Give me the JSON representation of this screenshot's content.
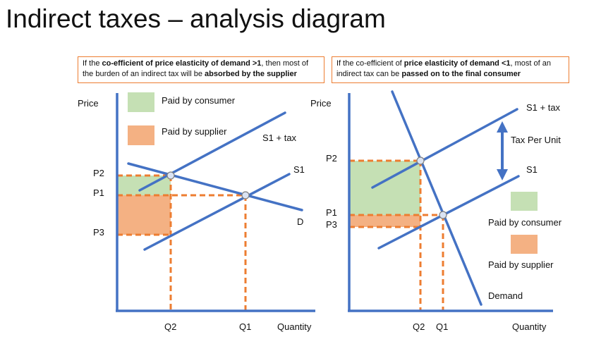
{
  "title": "Indirect taxes – analysis diagram",
  "notes": {
    "left": {
      "t1": "If the ",
      "b1": "co-efficient of price elasticity of demand >1",
      "t2": ", then most of the burden of an indirect tax will be ",
      "b2": "absorbed by the supplier"
    },
    "right": {
      "t1": "If the co-efficient of ",
      "b1": "price elasticity of demand <1",
      "t2": ", most of an indirect tax can be ",
      "b2": "passed on to the final consumer"
    }
  },
  "colors": {
    "axis": "#4472C4",
    "curve": "#4472C4",
    "guide": "#ED7D31",
    "consumer_area": "#C5E0B4",
    "supplier_area": "#F4B183",
    "point_fill": "#DAE3F3"
  },
  "left": {
    "y_axis_label": "Price",
    "x_axis_label": "Quantity",
    "price_labels": {
      "p2": "P2",
      "p1": "P1",
      "p3": "P3"
    },
    "quantity_labels": {
      "q2": "Q2",
      "q1": "Q1"
    },
    "curve_labels": {
      "supply_tax": "S1 + tax",
      "supply": "S1",
      "demand": "D"
    },
    "legend": {
      "consumer": "Paid by consumer",
      "supplier": "Paid by supplier"
    }
  },
  "right": {
    "y_axis_label": "Price",
    "x_axis_label": "Quantity",
    "price_labels": {
      "p2": "P2",
      "p1": "P1",
      "p3": "P3"
    },
    "quantity_labels": {
      "q2": "Q2",
      "q1": "Q1"
    },
    "curve_labels": {
      "supply_tax": "S1 + tax",
      "supply": "S1",
      "demand": "Demand"
    },
    "tax_label": "Tax Per Unit",
    "legend": {
      "consumer": "Paid by consumer",
      "supplier": "Paid by supplier"
    }
  }
}
